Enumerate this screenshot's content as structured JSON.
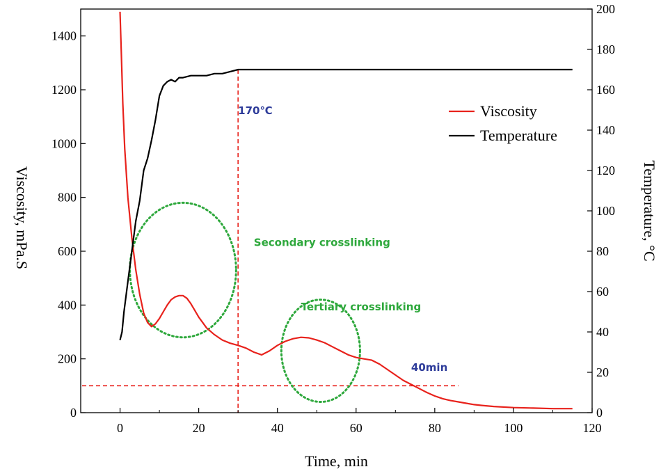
{
  "chart_data": {
    "type": "line",
    "xlabel": "Time, min",
    "ylabel_left": "Viscosity, mPa.S",
    "ylabel_right": "Temperature, °C",
    "xlim": [
      -10,
      120
    ],
    "ylim_left": [
      0,
      1500
    ],
    "ylim_right": [
      0,
      200
    ],
    "x_ticks": [
      0,
      20,
      40,
      60,
      80,
      100,
      120
    ],
    "y_left_ticks": [
      0,
      200,
      400,
      600,
      800,
      1000,
      1200,
      1400
    ],
    "y_right_ticks": [
      0,
      20,
      40,
      60,
      80,
      100,
      120,
      140,
      160,
      180,
      200
    ],
    "legend": {
      "position": "top-right",
      "entries": [
        {
          "label": "Viscosity",
          "color": "#e8221c"
        },
        {
          "label": "Temperature",
          "color": "#000000"
        }
      ]
    },
    "series": [
      {
        "name": "Viscosity",
        "axis": "left",
        "color": "#e8221c",
        "x": [
          0,
          0.3,
          0.7,
          1.2,
          2,
          3,
          4,
          5,
          6,
          7,
          8,
          9,
          10,
          11,
          12,
          13,
          14,
          15,
          16,
          17,
          18,
          19,
          20,
          22,
          24,
          26,
          28,
          30,
          32,
          34,
          36,
          38,
          40,
          42,
          44,
          46,
          48,
          50,
          52,
          54,
          56,
          58,
          60,
          62,
          64,
          66,
          68,
          70,
          72,
          74,
          76,
          78,
          80,
          82,
          84,
          86,
          88,
          90,
          92,
          95,
          100,
          105,
          110,
          115
        ],
        "y": [
          1490,
          1350,
          1150,
          980,
          800,
          650,
          530,
          440,
          370,
          335,
          320,
          330,
          350,
          375,
          400,
          420,
          430,
          435,
          435,
          425,
          405,
          380,
          355,
          315,
          290,
          270,
          258,
          250,
          240,
          225,
          215,
          230,
          250,
          265,
          275,
          280,
          278,
          270,
          260,
          245,
          230,
          215,
          205,
          200,
          195,
          180,
          160,
          140,
          120,
          105,
          90,
          75,
          62,
          52,
          45,
          40,
          35,
          30,
          27,
          23,
          19,
          17,
          15,
          15
        ]
      },
      {
        "name": "Temperature",
        "axis": "right",
        "color": "#000000",
        "x": [
          0,
          0.5,
          1,
          2,
          3,
          4,
          5,
          6,
          7,
          8,
          9,
          10,
          11,
          12,
          13,
          14,
          15,
          16,
          18,
          20,
          22,
          24,
          26,
          28,
          30,
          40,
          60,
          80,
          100,
          115
        ],
        "y": [
          36,
          40,
          50,
          65,
          80,
          95,
          105,
          120,
          126,
          135,
          145,
          157,
          162,
          164,
          165,
          164,
          166,
          166,
          167,
          167,
          167,
          168,
          168,
          169,
          170,
          170,
          170,
          170,
          170,
          170
        ]
      }
    ],
    "reference_lines": [
      {
        "orientation": "vertical",
        "x": 30,
        "color": "#e8221c",
        "style": "dashed"
      },
      {
        "orientation": "horizontal",
        "y_left": 100,
        "x_start": -10,
        "x_end": 86,
        "color": "#e8221c",
        "style": "dashed"
      }
    ],
    "annotations": [
      {
        "text": "170℃",
        "color": "#2e3c9a",
        "x": 30,
        "y_left": 1110
      },
      {
        "text": "Secondary crosslinking",
        "color": "#2ea83c",
        "x": 34,
        "y_left": 620
      },
      {
        "text": "Tertiary crosslinking",
        "color": "#2ea83c",
        "x": 46,
        "y_left": 380
      },
      {
        "text": "40min",
        "color": "#2e3c9a",
        "x": 74,
        "y_left": 155
      }
    ],
    "highlight_ellipses": [
      {
        "label": "secondary",
        "cx": 16,
        "cy_left": 530,
        "rx": 13.5,
        "ry_left": 250,
        "color": "#2ea83c"
      },
      {
        "label": "tertiary",
        "cx": 51,
        "cy_left": 230,
        "rx": 10,
        "ry_left": 190,
        "color": "#2ea83c"
      }
    ]
  }
}
